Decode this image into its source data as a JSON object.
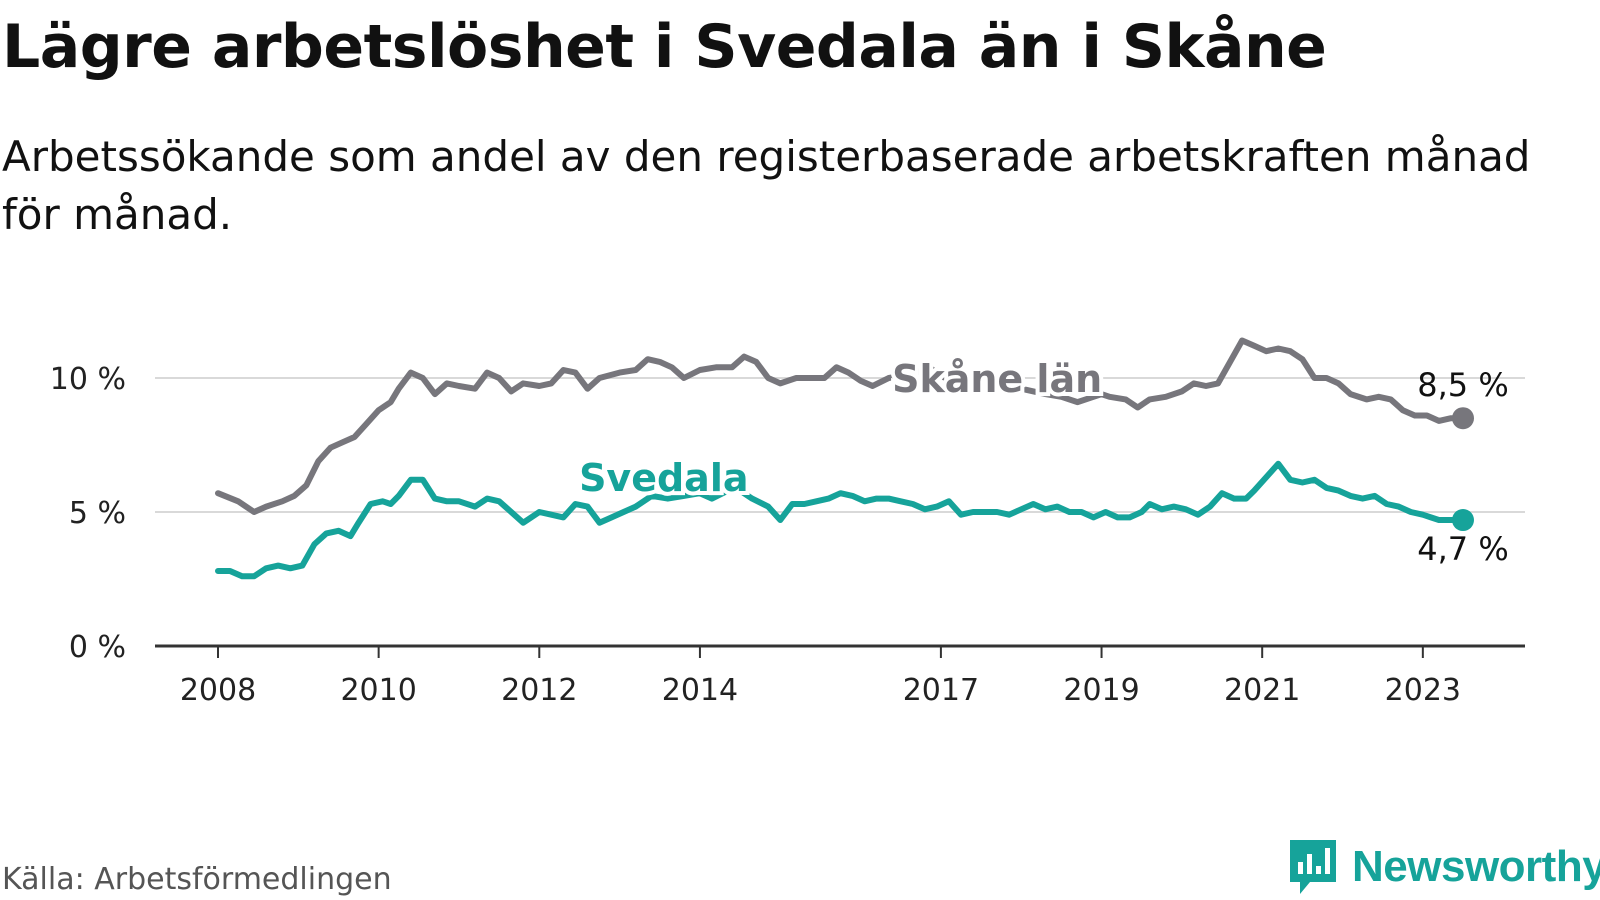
{
  "title": "Lägre arbetslöshet i Svedala än i Skåne",
  "subtitle": "Arbetssökande som andel av den registerbaserade arbetskraften månad för månad.",
  "source": "Källa: Arbetsförmedlingen",
  "brand": {
    "name": "Newsworthy",
    "icon": "newsworthy-logo-icon",
    "color": "#16a39a"
  },
  "chart_data": {
    "type": "line",
    "title": "Lägre arbetslöshet i Svedala än i Skåne",
    "xlabel": "",
    "ylabel": "",
    "ylim": [
      0,
      12
    ],
    "xlim": [
      2008,
      2023.83
    ],
    "yticks": [
      0,
      5,
      10
    ],
    "ytick_labels": [
      "0 %",
      "5 %",
      "10 %"
    ],
    "xticks": [
      2008,
      2010,
      2012,
      2014,
      2017,
      2019,
      2021,
      2023
    ],
    "xtick_labels": [
      "2008",
      "2010",
      "2012",
      "2014",
      "2017",
      "2019",
      "2021",
      "2023"
    ],
    "grid": true,
    "series": [
      {
        "name": "Skåne län",
        "color": "#77767c",
        "end_label": "8,5 %",
        "points": [
          [
            2008.0,
            5.7
          ],
          [
            2008.25,
            5.4
          ],
          [
            2008.45,
            5.0
          ],
          [
            2008.6,
            5.2
          ],
          [
            2008.8,
            5.4
          ],
          [
            2008.95,
            5.6
          ],
          [
            2009.1,
            6.0
          ],
          [
            2009.25,
            6.9
          ],
          [
            2009.4,
            7.4
          ],
          [
            2009.55,
            7.6
          ],
          [
            2009.7,
            7.8
          ],
          [
            2009.85,
            8.3
          ],
          [
            2010.0,
            8.8
          ],
          [
            2010.15,
            9.1
          ],
          [
            2010.25,
            9.6
          ],
          [
            2010.4,
            10.2
          ],
          [
            2010.55,
            10.0
          ],
          [
            2010.7,
            9.4
          ],
          [
            2010.85,
            9.8
          ],
          [
            2011.0,
            9.7
          ],
          [
            2011.2,
            9.6
          ],
          [
            2011.35,
            10.2
          ],
          [
            2011.5,
            10.0
          ],
          [
            2011.65,
            9.5
          ],
          [
            2011.8,
            9.8
          ],
          [
            2012.0,
            9.7
          ],
          [
            2012.15,
            9.8
          ],
          [
            2012.3,
            10.3
          ],
          [
            2012.45,
            10.2
          ],
          [
            2012.6,
            9.6
          ],
          [
            2012.75,
            10.0
          ],
          [
            2013.0,
            10.2
          ],
          [
            2013.2,
            10.3
          ],
          [
            2013.35,
            10.7
          ],
          [
            2013.5,
            10.6
          ],
          [
            2013.65,
            10.4
          ],
          [
            2013.8,
            10.0
          ],
          [
            2014.0,
            10.3
          ],
          [
            2014.2,
            10.4
          ],
          [
            2014.4,
            10.4
          ],
          [
            2014.55,
            10.8
          ],
          [
            2014.7,
            10.6
          ],
          [
            2014.85,
            10.0
          ],
          [
            2015.0,
            9.8
          ],
          [
            2015.2,
            10.0
          ],
          [
            2015.4,
            10.0
          ],
          [
            2015.55,
            10.0
          ],
          [
            2015.7,
            10.4
          ],
          [
            2015.85,
            10.2
          ],
          [
            2016.0,
            9.9
          ],
          [
            2016.15,
            9.7
          ],
          [
            2016.35,
            10.0
          ],
          [
            2016.55,
            10.1
          ],
          [
            2016.7,
            10.2
          ],
          [
            2016.85,
            10.4
          ],
          [
            2017.0,
            10.1
          ],
          [
            2017.2,
            9.7
          ],
          [
            2017.4,
            9.6
          ],
          [
            2017.6,
            9.8
          ],
          [
            2017.8,
            9.7
          ],
          [
            2018.0,
            9.6
          ],
          [
            2018.3,
            9.4
          ],
          [
            2018.5,
            9.3
          ],
          [
            2018.7,
            9.1
          ],
          [
            2018.9,
            9.3
          ],
          [
            2019.0,
            9.4
          ],
          [
            2019.1,
            9.3
          ],
          [
            2019.3,
            9.2
          ],
          [
            2019.45,
            8.9
          ],
          [
            2019.6,
            9.2
          ],
          [
            2019.8,
            9.3
          ],
          [
            2020.0,
            9.5
          ],
          [
            2020.15,
            9.8
          ],
          [
            2020.3,
            9.7
          ],
          [
            2020.45,
            9.8
          ],
          [
            2020.6,
            10.6
          ],
          [
            2020.75,
            11.4
          ],
          [
            2020.9,
            11.2
          ],
          [
            2021.05,
            11.0
          ],
          [
            2021.2,
            11.1
          ],
          [
            2021.35,
            11.0
          ],
          [
            2021.5,
            10.7
          ],
          [
            2021.65,
            10.0
          ],
          [
            2021.8,
            10.0
          ],
          [
            2021.95,
            9.8
          ],
          [
            2022.1,
            9.4
          ],
          [
            2022.3,
            9.2
          ],
          [
            2022.45,
            9.3
          ],
          [
            2022.6,
            9.2
          ],
          [
            2022.75,
            8.8
          ],
          [
            2022.9,
            8.6
          ],
          [
            2023.05,
            8.6
          ],
          [
            2023.2,
            8.4
          ],
          [
            2023.35,
            8.5
          ],
          [
            2023.5,
            8.5
          ]
        ]
      },
      {
        "name": "Svedala",
        "color": "#16a39a",
        "end_label": "4,7 %",
        "points": [
          [
            2008.0,
            2.8
          ],
          [
            2008.15,
            2.8
          ],
          [
            2008.3,
            2.6
          ],
          [
            2008.45,
            2.6
          ],
          [
            2008.6,
            2.9
          ],
          [
            2008.75,
            3.0
          ],
          [
            2008.9,
            2.9
          ],
          [
            2009.05,
            3.0
          ],
          [
            2009.2,
            3.8
          ],
          [
            2009.35,
            4.2
          ],
          [
            2009.5,
            4.3
          ],
          [
            2009.65,
            4.1
          ],
          [
            2009.75,
            4.6
          ],
          [
            2009.9,
            5.3
          ],
          [
            2010.05,
            5.4
          ],
          [
            2010.15,
            5.3
          ],
          [
            2010.25,
            5.6
          ],
          [
            2010.4,
            6.2
          ],
          [
            2010.55,
            6.2
          ],
          [
            2010.7,
            5.5
          ],
          [
            2010.85,
            5.4
          ],
          [
            2011.0,
            5.4
          ],
          [
            2011.2,
            5.2
          ],
          [
            2011.35,
            5.5
          ],
          [
            2011.5,
            5.4
          ],
          [
            2011.65,
            5.0
          ],
          [
            2011.8,
            4.6
          ],
          [
            2012.0,
            5.0
          ],
          [
            2012.15,
            4.9
          ],
          [
            2012.3,
            4.8
          ],
          [
            2012.45,
            5.3
          ],
          [
            2012.6,
            5.2
          ],
          [
            2012.75,
            4.6
          ],
          [
            2012.9,
            4.8
          ],
          [
            2013.05,
            5.0
          ],
          [
            2013.2,
            5.2
          ],
          [
            2013.4,
            5.6
          ],
          [
            2013.6,
            5.5
          ],
          [
            2013.8,
            5.6
          ],
          [
            2014.0,
            5.7
          ],
          [
            2014.15,
            5.5
          ],
          [
            2014.35,
            5.8
          ],
          [
            2014.5,
            5.8
          ],
          [
            2014.65,
            5.5
          ],
          [
            2014.85,
            5.2
          ],
          [
            2015.0,
            4.7
          ],
          [
            2015.15,
            5.3
          ],
          [
            2015.3,
            5.3
          ],
          [
            2015.45,
            5.4
          ],
          [
            2015.6,
            5.5
          ],
          [
            2015.75,
            5.7
          ],
          [
            2015.9,
            5.6
          ],
          [
            2016.05,
            5.4
          ],
          [
            2016.2,
            5.5
          ],
          [
            2016.35,
            5.5
          ],
          [
            2016.5,
            5.4
          ],
          [
            2016.65,
            5.3
          ],
          [
            2016.8,
            5.1
          ],
          [
            2016.95,
            5.2
          ],
          [
            2017.1,
            5.4
          ],
          [
            2017.25,
            4.9
          ],
          [
            2017.4,
            5.0
          ],
          [
            2017.55,
            5.0
          ],
          [
            2017.7,
            5.0
          ],
          [
            2017.85,
            4.9
          ],
          [
            2018.0,
            5.1
          ],
          [
            2018.15,
            5.3
          ],
          [
            2018.3,
            5.1
          ],
          [
            2018.45,
            5.2
          ],
          [
            2018.6,
            5.0
          ],
          [
            2018.75,
            5.0
          ],
          [
            2018.9,
            4.8
          ],
          [
            2019.05,
            5.0
          ],
          [
            2019.2,
            4.8
          ],
          [
            2019.35,
            4.8
          ],
          [
            2019.5,
            5.0
          ],
          [
            2019.6,
            5.3
          ],
          [
            2019.75,
            5.1
          ],
          [
            2019.9,
            5.2
          ],
          [
            2020.05,
            5.1
          ],
          [
            2020.2,
            4.9
          ],
          [
            2020.35,
            5.2
          ],
          [
            2020.5,
            5.7
          ],
          [
            2020.65,
            5.5
          ],
          [
            2020.8,
            5.5
          ],
          [
            2020.9,
            5.8
          ],
          [
            2021.05,
            6.3
          ],
          [
            2021.2,
            6.8
          ],
          [
            2021.35,
            6.2
          ],
          [
            2021.5,
            6.1
          ],
          [
            2021.65,
            6.2
          ],
          [
            2021.8,
            5.9
          ],
          [
            2021.95,
            5.8
          ],
          [
            2022.1,
            5.6
          ],
          [
            2022.25,
            5.5
          ],
          [
            2022.4,
            5.6
          ],
          [
            2022.55,
            5.3
          ],
          [
            2022.7,
            5.2
          ],
          [
            2022.85,
            5.0
          ],
          [
            2023.0,
            4.9
          ],
          [
            2023.1,
            4.8
          ],
          [
            2023.2,
            4.7
          ],
          [
            2023.35,
            4.7
          ],
          [
            2023.5,
            4.7
          ]
        ]
      }
    ],
    "annotations": [
      {
        "text": "Skåne län",
        "series": "Skåne län",
        "x": 2017.7,
        "y": 10.0
      },
      {
        "text": "Svedala",
        "series": "Svedala",
        "x": 2013.55,
        "y": 6.3
      }
    ]
  }
}
